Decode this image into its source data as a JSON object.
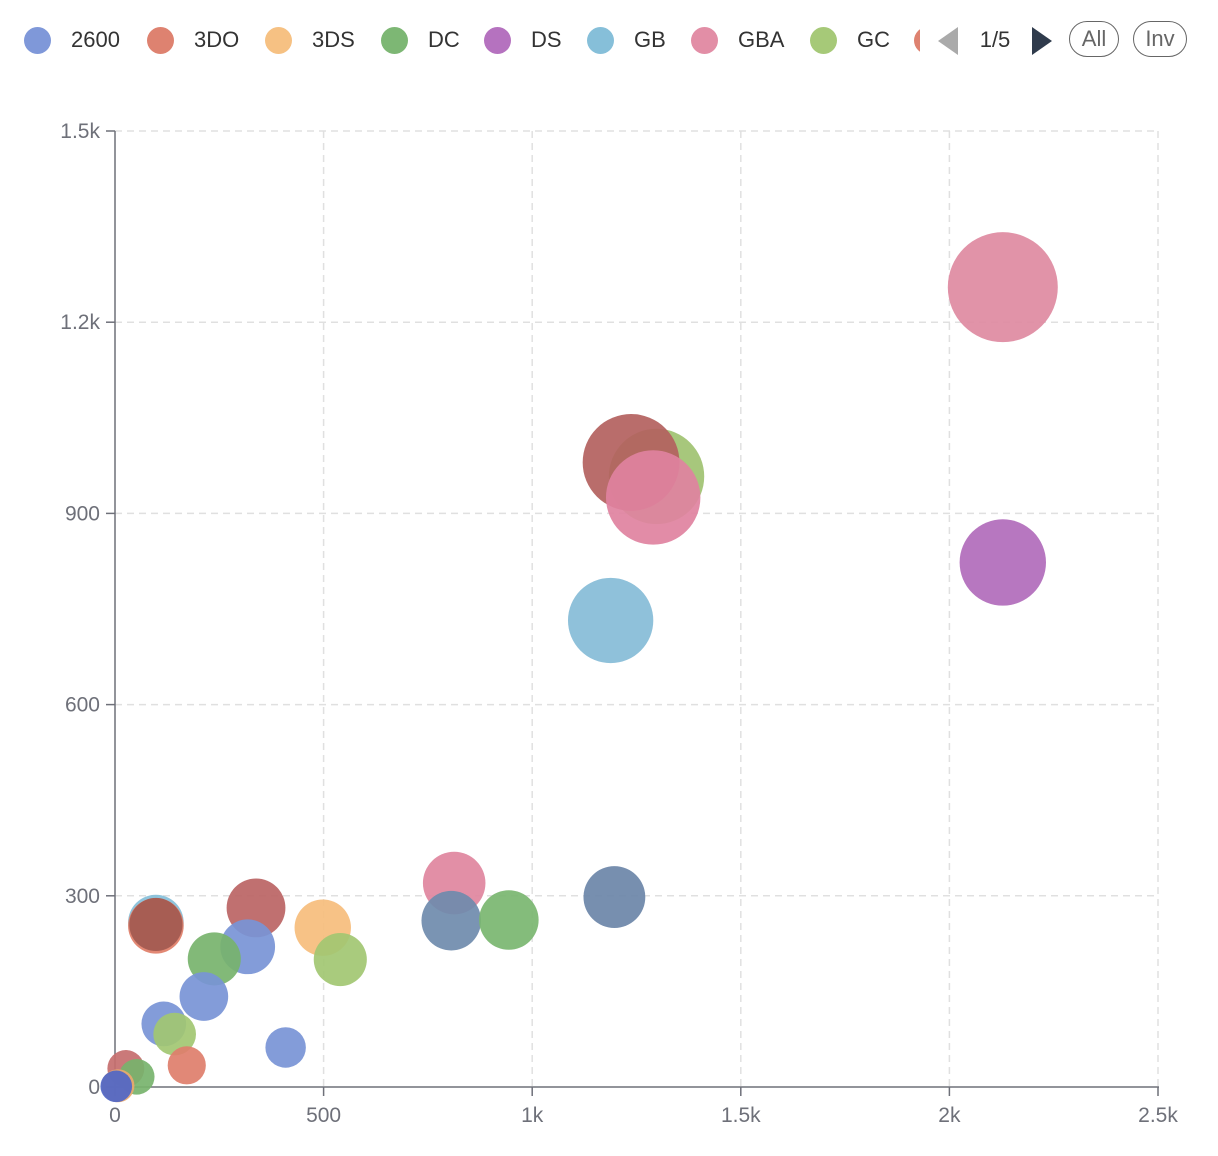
{
  "legend": {
    "items": [
      {
        "label": "2600",
        "color": "#7f98d9"
      },
      {
        "label": "3DO",
        "color": "#de8270"
      },
      {
        "label": "3DS",
        "color": "#f6c183"
      },
      {
        "label": "DC",
        "color": "#7db774"
      },
      {
        "label": "DS",
        "color": "#b572bf"
      },
      {
        "label": "GB",
        "color": "#86bfd9"
      },
      {
        "label": "GBA",
        "color": "#e28ea6"
      },
      {
        "label": "GC",
        "color": "#a6c978"
      }
    ],
    "cut_off_color": "#de8270",
    "page_indicator": "1/5",
    "all_label": "All",
    "invert_label": "Inv"
  },
  "chart_data": {
    "type": "scatter",
    "title": "",
    "xlabel": "",
    "ylabel": "",
    "xlim": [
      0,
      2500
    ],
    "ylim": [
      0,
      1500
    ],
    "x_ticks": [
      0,
      500,
      1000,
      1500,
      2000,
      2500
    ],
    "x_tick_labels": [
      "0",
      "500",
      "1k",
      "1.5k",
      "2k",
      "2.5k"
    ],
    "y_ticks": [
      0,
      300,
      600,
      900,
      1200,
      1500
    ],
    "y_tick_labels": [
      "0",
      "300",
      "600",
      "900",
      "1.2k",
      "1.5k"
    ],
    "grid": true,
    "legend_position": "top",
    "points": [
      {
        "x": 2128,
        "y": 1255,
        "size": 1330,
        "color": "#de8aa1"
      },
      {
        "x": 2128,
        "y": 823,
        "size": 820,
        "color": "#b16bbb"
      },
      {
        "x": 1298,
        "y": 958,
        "size": 1000,
        "color": "#9fc271"
      },
      {
        "x": 1237,
        "y": 980,
        "size": 1030,
        "color": "#b3615e"
      },
      {
        "x": 1290,
        "y": 925,
        "size": 980,
        "color": "#e082a0"
      },
      {
        "x": 1188,
        "y": 732,
        "size": 800,
        "color": "#86bcd7"
      },
      {
        "x": 1197,
        "y": 298,
        "size": 420,
        "color": "#6b86a8"
      },
      {
        "x": 813,
        "y": 320,
        "size": 430,
        "color": "#e0859e"
      },
      {
        "x": 806,
        "y": 261,
        "size": 390,
        "color": "#6f8bad"
      },
      {
        "x": 944,
        "y": 262,
        "size": 390,
        "color": "#79b670"
      },
      {
        "x": 338,
        "y": 281,
        "size": 380,
        "color": "#bb6464"
      },
      {
        "x": 98,
        "y": 258,
        "size": 340,
        "color": "#86bfd9"
      },
      {
        "x": 98,
        "y": 253,
        "size": 340,
        "color": "#e07e68"
      },
      {
        "x": 98,
        "y": 255,
        "size": 310,
        "color": "#a35a50"
      },
      {
        "x": 498,
        "y": 250,
        "size": 350,
        "color": "#f6bd7c"
      },
      {
        "x": 318,
        "y": 220,
        "size": 330,
        "color": "#7894d6"
      },
      {
        "x": 238,
        "y": 201,
        "size": 310,
        "color": "#77b36d"
      },
      {
        "x": 540,
        "y": 200,
        "size": 310,
        "color": "#a2c772"
      },
      {
        "x": 213,
        "y": 142,
        "size": 260,
        "color": "#7894d6"
      },
      {
        "x": 117,
        "y": 99,
        "size": 220,
        "color": "#7894d6"
      },
      {
        "x": 143,
        "y": 83,
        "size": 200,
        "color": "#a2c772"
      },
      {
        "x": 409,
        "y": 62,
        "size": 180,
        "color": "#7894d6"
      },
      {
        "x": 172,
        "y": 34,
        "size": 160,
        "color": "#de7e6b"
      },
      {
        "x": 26,
        "y": 29,
        "size": 150,
        "color": "#c56e6e"
      },
      {
        "x": 52,
        "y": 16,
        "size": 140,
        "color": "#77b36d"
      },
      {
        "x": 7,
        "y": 2,
        "size": 120,
        "color": "#e9a86f"
      },
      {
        "x": 3,
        "y": 1,
        "size": 110,
        "color": "#4f66c6"
      }
    ]
  }
}
